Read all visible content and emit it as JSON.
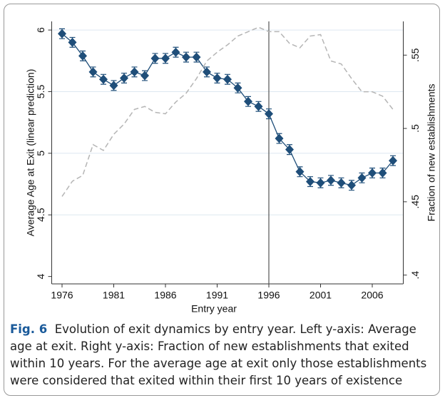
{
  "chart_data": {
    "type": "line",
    "y_label": "Average Age at Exit (linear prediction)",
    "y2_label": "Fraction of new establishments",
    "x_label": "Entry year",
    "x": [
      1976,
      1977,
      1978,
      1979,
      1980,
      1981,
      1982,
      1983,
      1984,
      1985,
      1986,
      1987,
      1988,
      1989,
      1990,
      1991,
      1992,
      1993,
      1994,
      1995,
      1996,
      1997,
      1998,
      1999,
      2000,
      2001,
      2002,
      2003,
      2004,
      2005,
      2006,
      2007,
      2008
    ],
    "series": [
      {
        "color": "#1f4e79",
        "marker": "diamond",
        "values": [
          5.97,
          5.9,
          5.79,
          5.66,
          5.6,
          5.55,
          5.61,
          5.66,
          5.63,
          5.77,
          5.77,
          5.82,
          5.78,
          5.78,
          5.66,
          5.61,
          5.6,
          5.53,
          5.42,
          5.38,
          5.32,
          5.12,
          5.03,
          4.85,
          4.77,
          4.76,
          4.78,
          4.76,
          4.74,
          4.8,
          4.84,
          4.84,
          4.94
        ],
        "errors": [
          0.04,
          0.04,
          0.04,
          0.04,
          0.04,
          0.04,
          0.04,
          0.04,
          0.04,
          0.04,
          0.04,
          0.04,
          0.04,
          0.04,
          0.04,
          0.04,
          0.04,
          0.04,
          0.04,
          0.04,
          0.04,
          0.04,
          0.04,
          0.04,
          0.04,
          0.04,
          0.04,
          0.04,
          0.04,
          0.04,
          0.04,
          0.04,
          0.04
        ]
      },
      {
        "color": "#b5b5b5",
        "axis": "y2",
        "dash": true,
        "values": [
          0.4536,
          0.464,
          0.468,
          0.489,
          0.485,
          0.496,
          0.503,
          0.513,
          0.515,
          0.511,
          0.51,
          0.518,
          0.524,
          0.534,
          0.546,
          0.552,
          0.557,
          0.563,
          0.566,
          0.569,
          0.566,
          0.566,
          0.558,
          0.555,
          0.563,
          0.564,
          0.546,
          0.544,
          0.534,
          0.525,
          0.525,
          0.522,
          0.513
        ]
      }
    ],
    "xlim": [
      1975,
      2009
    ],
    "xticks": [
      1976,
      1981,
      1986,
      1991,
      1996,
      2001,
      2006
    ],
    "ylim": [
      3.94,
      6.07
    ],
    "yticks": [
      4,
      4.5,
      5,
      5.5,
      6
    ],
    "y2lim": [
      0.394,
      0.573
    ],
    "y2ticks": [
      {
        "value": 0.4,
        "label": ".4"
      },
      {
        "value": 0.45,
        "label": ".45"
      },
      {
        "value": 0.5,
        "label": ".5"
      },
      {
        "value": 0.55,
        "label": ".55"
      }
    ],
    "vline": 1996,
    "grid": true
  },
  "caption": {
    "label": "Fig. 6",
    "text": "Evolution of exit dynamics by entry year. Left y-axis: Average age at exit. Right y-axis: Fraction of new establishments that exited within 10 years. For the average age at exit only those establishments were considered that exited within their first 10 years of existence"
  }
}
